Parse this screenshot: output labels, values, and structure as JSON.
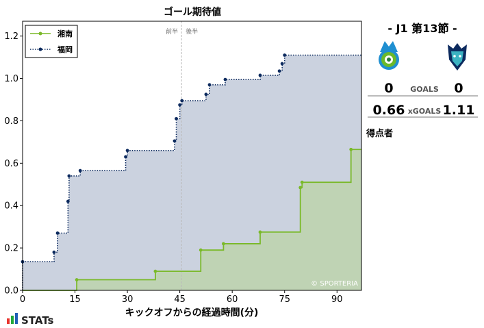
{
  "chart_data": {
    "type": "step-area",
    "title": "ゴール期待値",
    "xlabel": "キックオフからの経過時間(分)",
    "ylabel": "",
    "xlim": [
      0,
      97
    ],
    "ylim": [
      0,
      1.27
    ],
    "x_ticks": [
      0,
      15,
      30,
      45,
      60,
      75,
      90
    ],
    "y_ticks": [
      0.0,
      0.2,
      0.4,
      0.6,
      0.8,
      1.0,
      1.2
    ],
    "half_marker": {
      "x": 45.5,
      "left_label": "前半",
      "right_label": "後半"
    },
    "legend_position": "top-left",
    "watermark": "© SPORTERIA",
    "series": [
      {
        "name": "湘南",
        "color": "#7ab929",
        "fill": "#bfd3b4",
        "points": [
          [
            0,
            0
          ],
          [
            15.5,
            0.05
          ],
          [
            38,
            0.09
          ],
          [
            51,
            0.19
          ],
          [
            57.5,
            0.22
          ],
          [
            68,
            0.275
          ],
          [
            79.5,
            0.485
          ],
          [
            80,
            0.51
          ],
          [
            94,
            0.665
          ],
          [
            97,
            0.665
          ]
        ]
      },
      {
        "name": "福岡",
        "color": "#0c2a5e",
        "fill": "#cbd2df",
        "points": [
          [
            0,
            0.135
          ],
          [
            9,
            0.18
          ],
          [
            10,
            0.27
          ],
          [
            13,
            0.42
          ],
          [
            13.3,
            0.54
          ],
          [
            16.5,
            0.565
          ],
          [
            29.5,
            0.63
          ],
          [
            30,
            0.66
          ],
          [
            43.5,
            0.705
          ],
          [
            44,
            0.81
          ],
          [
            45,
            0.875
          ],
          [
            45.6,
            0.895
          ],
          [
            52.5,
            0.925
          ],
          [
            53.5,
            0.97
          ],
          [
            58,
            0.995
          ],
          [
            68,
            1.015
          ],
          [
            73.5,
            1.035
          ],
          [
            74.3,
            1.07
          ],
          [
            75,
            1.11
          ],
          [
            97,
            1.11
          ]
        ]
      }
    ]
  },
  "match": {
    "title": "- J1 第13節 -",
    "home_score": "0",
    "away_score": "0",
    "goals_label": "GOALS",
    "home_xg": "0.66",
    "away_xg": "1.11",
    "xg_label": "xGOALS",
    "scorers_label": "得点者"
  },
  "logos": {
    "home": "shonan-bellmare-crest",
    "away": "avispa-fukuoka-crest",
    "brand": "STATs"
  },
  "colors": {
    "home": "#7ab929",
    "away": "#0c2a5e",
    "brand_bars": [
      "#e8352e",
      "#22a83a",
      "#1f5fb5"
    ]
  }
}
